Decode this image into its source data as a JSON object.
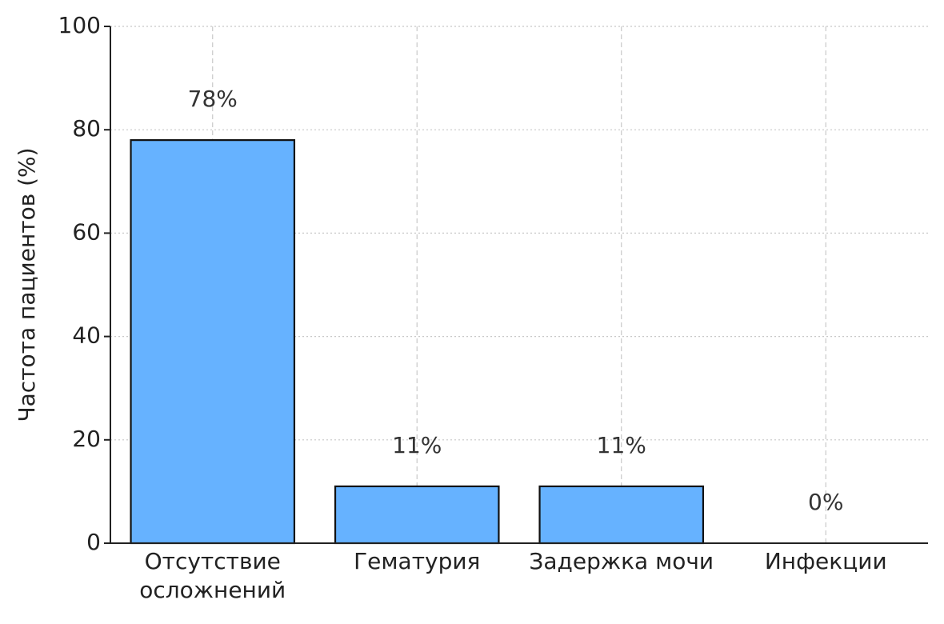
{
  "chart_data": {
    "type": "bar",
    "ylabel": "Частота пациентов (%)",
    "categories": [
      "Отсутствие\nосложнений",
      "Гематурия",
      "Задержка мочи",
      "Инфекции"
    ],
    "values": [
      78,
      11,
      11,
      0
    ],
    "value_labels": [
      "78%",
      "11%",
      "11%",
      "0%"
    ],
    "color": "#66b2ff",
    "ylim": [
      0,
      100
    ],
    "yticks": [
      0,
      20,
      40,
      60,
      80,
      100
    ],
    "grid": true
  }
}
